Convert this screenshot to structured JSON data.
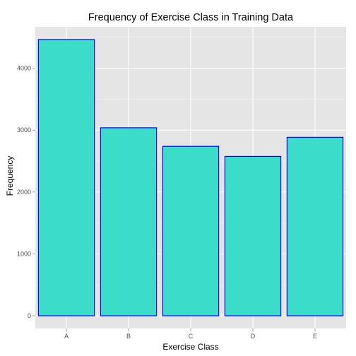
{
  "chart_data": {
    "type": "bar",
    "title": "Frequency of Exercise Class in Training Data",
    "xlabel": "Exercise Class",
    "ylabel": "Frequency",
    "categories": [
      "A",
      "B",
      "C",
      "D",
      "E"
    ],
    "values": [
      4464,
      3038,
      2738,
      2575,
      2884
    ],
    "ylim": [
      -205,
      4669
    ],
    "yticks": [
      "0",
      "1000",
      "2000",
      "3000",
      "4000"
    ],
    "grid": true,
    "legend": "none",
    "colors": {
      "panel_background": "#e5e5e5",
      "grid_major": "#ffffff",
      "grid_minor": "#f2f2f2",
      "bar_fill": "#3bdcc8",
      "bar_outline": "#0000ff",
      "tick_text": "#4d4d4d"
    }
  }
}
